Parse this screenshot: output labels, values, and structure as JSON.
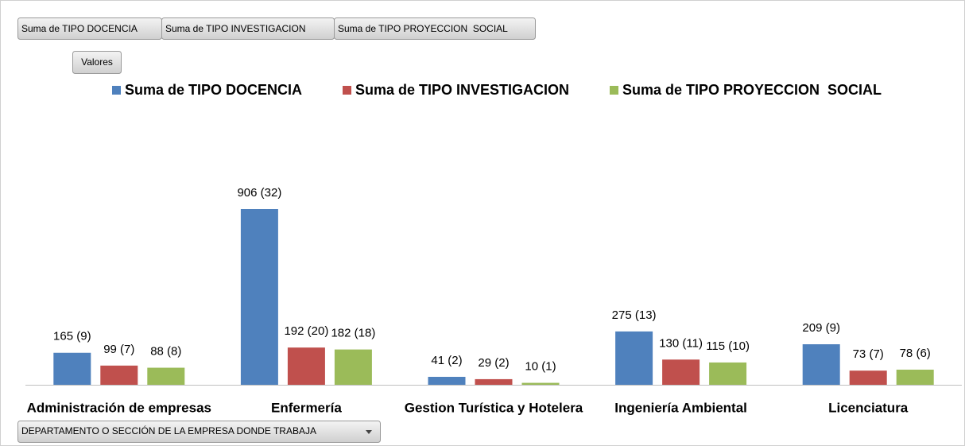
{
  "field_buttons": [
    "Suma de TIPO DOCENCIA",
    "Suma de TIPO INVESTIGACION",
    "Suma de TIPO PROYECCION  SOCIAL"
  ],
  "values_button": "Valores",
  "axis_field": "DEPARTAMENTO O SECCIÓN DE LA EMPRESA DONDE TRABAJA",
  "chart_data": {
    "type": "bar",
    "categories": [
      "Administración de empresas",
      "Enfermería",
      "Gestion Turística y Hotelera",
      "Ingeniería Ambiental",
      "Licenciatura"
    ],
    "series": [
      {
        "name": "Suma de TIPO DOCENCIA",
        "color": "#4f81bd",
        "values": [
          165,
          906,
          41,
          275,
          209
        ],
        "value_labels": [
          "165 (9)",
          "906 (32)",
          "41 (2)",
          "275 (13)",
          "209 (9)"
        ]
      },
      {
        "name": "Suma de TIPO INVESTIGACION",
        "color": "#c0504d",
        "values": [
          99,
          192,
          29,
          130,
          73
        ],
        "value_labels": [
          "99 (7)",
          "192 (20)",
          "29 (2)",
          "130 (11)",
          "73 (7)"
        ]
      },
      {
        "name": "Suma de TIPO PROYECCION  SOCIAL",
        "color": "#9bbb59",
        "values": [
          88,
          182,
          10,
          115,
          78
        ],
        "value_labels": [
          "88 (8)",
          "182 (18)",
          "10 (1)",
          "115 (10)",
          "78 (6)"
        ]
      }
    ],
    "legend": "top"
  }
}
